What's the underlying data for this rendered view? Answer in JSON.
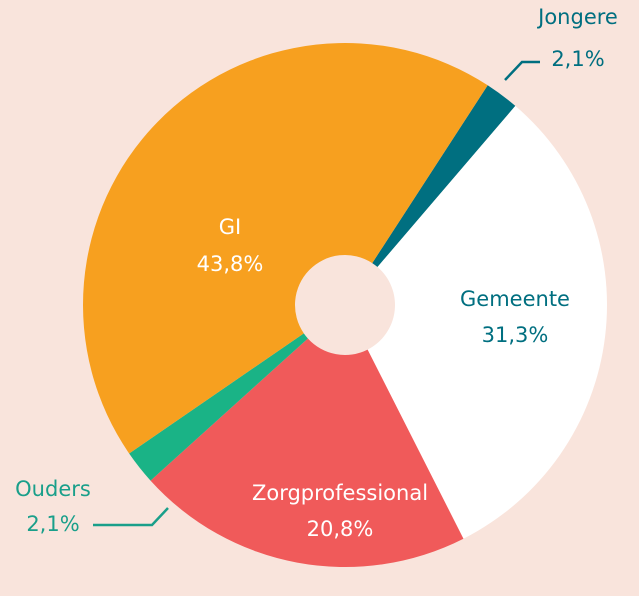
{
  "chart_data": {
    "type": "pie",
    "categories": [
      "Jongere",
      "Gemeente",
      "Zorgprofessional",
      "Ouders",
      "GI"
    ],
    "values": [
      2.1,
      31.3,
      20.8,
      2.1,
      43.8
    ],
    "value_labels": [
      "2,1%",
      "31,3%",
      "20,8%",
      "2,1%",
      "43,8%"
    ],
    "colors": [
      "#006f80",
      "#ffffff",
      "#f05a5a",
      "#1ab386",
      "#f7a01f"
    ]
  }
}
